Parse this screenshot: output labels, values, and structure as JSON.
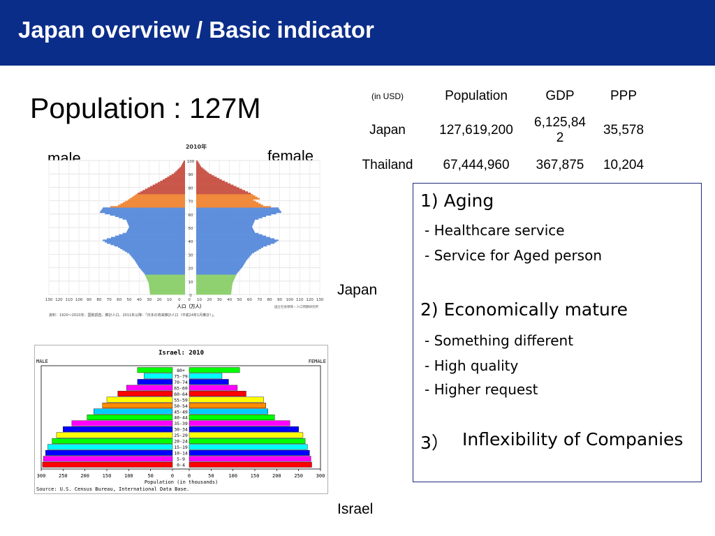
{
  "header": {
    "title": "Japan overview / Basic indicator"
  },
  "population_title": "Population : 127M",
  "japan_chart": {
    "male_label": "male",
    "female_label": "female",
    "year_label": "2010年",
    "y_ticks": [
      "100",
      "90",
      "80",
      "70",
      "60",
      "50",
      "40",
      "30",
      "20",
      "10",
      "0"
    ],
    "x_ticks": [
      "130",
      "120",
      "110",
      "100",
      "90",
      "80",
      "70",
      "60",
      "50",
      "40",
      "30",
      "20",
      "10",
      "0",
      "0",
      "10",
      "20",
      "30",
      "40",
      "50",
      "60",
      "70",
      "80",
      "90",
      "100",
      "110",
      "120",
      "130"
    ],
    "x_axis_label": "人口（万人）",
    "source": "資料：1920〜2010年：国勢調査、推計人口、2011年以降：「日本の将来推計人口（平成24年1月推計）」。",
    "institute": "国立社会保障・人口問題研究所",
    "caption": "Japan",
    "colors": {
      "top": "#c9574a",
      "upper_mid": "#f08a3c",
      "mid": "#5e8fdc",
      "low": "#8fd070"
    }
  },
  "indicators": {
    "unit_label": "(in USD)",
    "columns": [
      "Population",
      "GDP",
      "PPP"
    ],
    "rows": [
      {
        "country": "Japan",
        "population": "127,619,200",
        "gdp_line1": "6,125,84",
        "gdp_line2": "2",
        "ppp": "35,578"
      },
      {
        "country": "Thailand",
        "population": "67,444,960",
        "gdp_line1": "367,875",
        "gdp_line2": "",
        "ppp": "10,204"
      }
    ]
  },
  "notes": {
    "aging": "1) Aging",
    "aging_items": [
      "- Healthcare service",
      "- Service for Aged person"
    ],
    "mature": "2) Economically mature",
    "mature_items": [
      "- Something different",
      "- High quality",
      "- Higher request"
    ],
    "inflex_num": "3）",
    "inflex_text": "Inflexibility of Companies"
  },
  "chart_data": {
    "type": "bar",
    "title": "Israel: 2010",
    "left_label": "MALE",
    "right_label": "FEMALE",
    "xlabel": "Population (in thousands)",
    "source": "Source: U.S. Census Bureau, International Data Base.",
    "x_ticks": [
      "300",
      "250",
      "200",
      "150",
      "100",
      "50",
      "0",
      "0",
      "50",
      "100",
      "150",
      "200",
      "250",
      "300"
    ],
    "xlim": [
      0,
      300
    ],
    "categories": [
      "80+",
      "75-79",
      "70-74",
      "65-69",
      "60-64",
      "55-59",
      "50-54",
      "45-49",
      "40-44",
      "35-39",
      "30-34",
      "25-29",
      "20-24",
      "15-19",
      "10-14",
      "5-9",
      "0-4"
    ],
    "series": [
      {
        "name": "MALE",
        "values": [
          80,
          65,
          80,
          105,
          125,
          150,
          160,
          180,
          195,
          230,
          250,
          265,
          275,
          285,
          290,
          295,
          297
        ]
      },
      {
        "name": "FEMALE",
        "values": [
          115,
          75,
          90,
          110,
          130,
          170,
          175,
          180,
          195,
          230,
          250,
          260,
          265,
          270,
          275,
          278,
          280
        ]
      }
    ],
    "colors": [
      "#00ff00",
      "#00ffff",
      "#0000ff",
      "#ff00ff",
      "#ff0000",
      "#ffff00",
      "#ff8c00",
      "#00ccff",
      "#00ff00",
      "#ff00ff",
      "#0000ff",
      "#ffff00",
      "#00ff00",
      "#00ffff",
      "#0000ff",
      "#ff00ff",
      "#ff0000"
    ],
    "caption": "Israel"
  }
}
